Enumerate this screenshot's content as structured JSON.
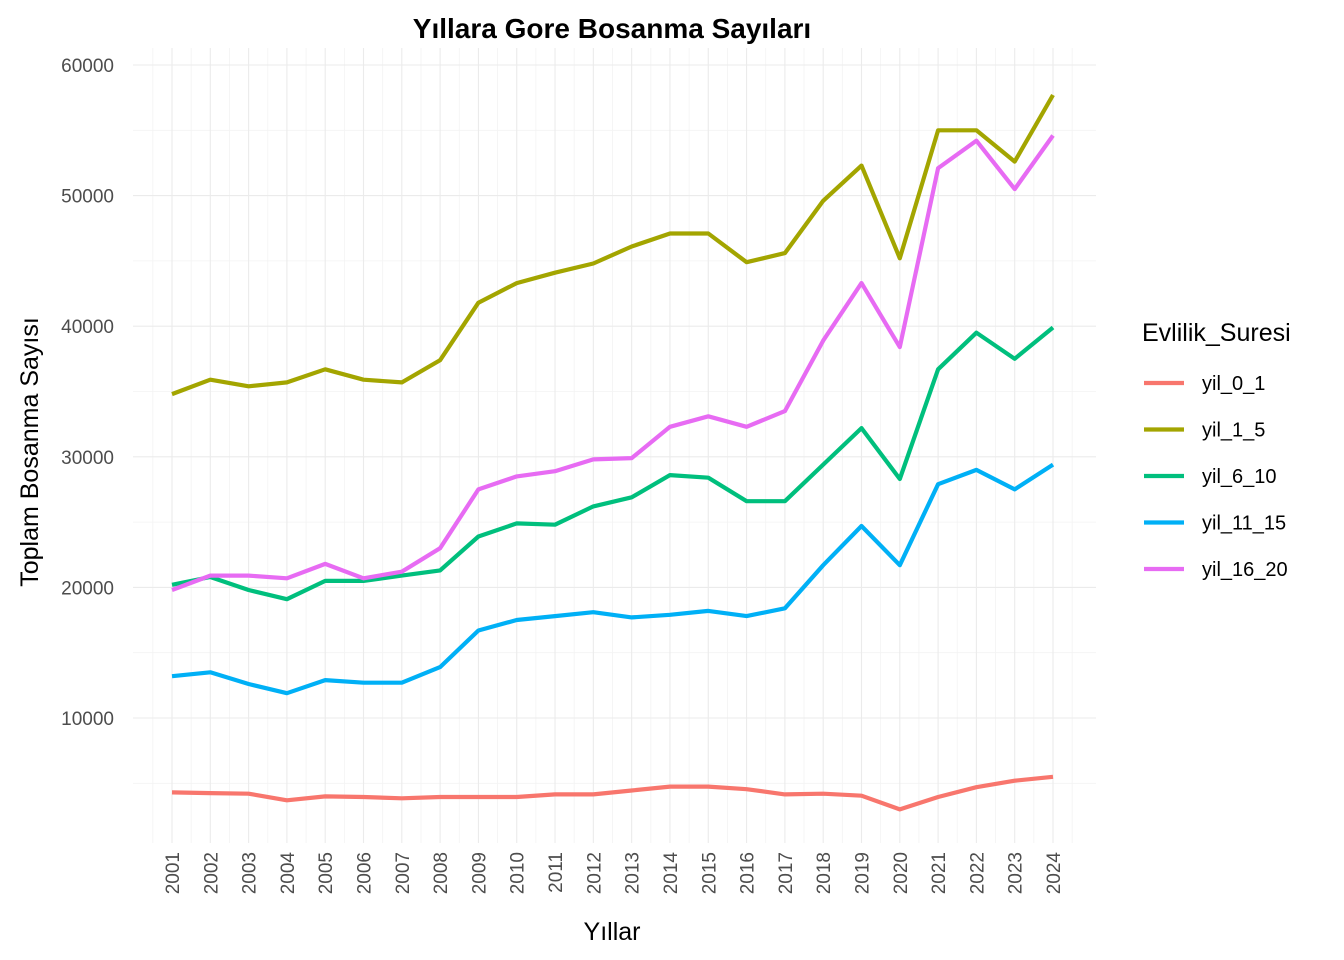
{
  "chart_data": {
    "type": "line",
    "title": "Yıllara Gore Bosanma Sayıları",
    "xlabel": "Yıllar",
    "ylabel": "Toplam Bosanma Sayısı",
    "legend_title": "Evlilik_Suresi",
    "legend_position": "right",
    "grid": true,
    "x": [
      2001,
      2002,
      2003,
      2004,
      2005,
      2006,
      2007,
      2008,
      2009,
      2010,
      2011,
      2012,
      2013,
      2014,
      2015,
      2016,
      2017,
      2018,
      2019,
      2020,
      2021,
      2022,
      2023,
      2024
    ],
    "xlim": [
      2000,
      2025
    ],
    "ylim": [
      3000,
      60000
    ],
    "yticks": [
      10000,
      20000,
      30000,
      40000,
      50000,
      60000
    ],
    "series": [
      {
        "name": "yil_0_1",
        "color": "#F8766D",
        "values": [
          4300,
          4250,
          4200,
          3700,
          4000,
          3950,
          3850,
          3950,
          3950,
          3950,
          4150,
          4150,
          4450,
          4750,
          4750,
          4550,
          4150,
          4200,
          4050,
          3000,
          3950,
          4700,
          5200,
          5500
        ]
      },
      {
        "name": "yil_1_5",
        "color": "#A3A500",
        "values": [
          34800,
          35900,
          35400,
          35700,
          36700,
          35900,
          35700,
          37400,
          41800,
          43300,
          44100,
          44800,
          46100,
          47100,
          47100,
          44900,
          45600,
          49600,
          52300,
          45200,
          55000,
          55000,
          52600,
          57700
        ]
      },
      {
        "name": "yil_6_10",
        "color": "#00BF7D",
        "values": [
          20200,
          20800,
          19800,
          19100,
          20500,
          20500,
          20900,
          21300,
          23900,
          24900,
          24800,
          26200,
          26900,
          28600,
          28400,
          26600,
          26600,
          29400,
          32200,
          28300,
          36700,
          39500,
          37500,
          39900
        ]
      },
      {
        "name": "yil_11_15",
        "color": "#00B0F6",
        "values": [
          13200,
          13500,
          12600,
          11900,
          12900,
          12700,
          12700,
          13900,
          16700,
          17500,
          17800,
          18100,
          17700,
          17900,
          18200,
          17800,
          18400,
          21700,
          24700,
          21700,
          27900,
          29000,
          27500,
          29400
        ]
      },
      {
        "name": "yil_16_20",
        "color": "#E76BF3",
        "values": [
          19800,
          20900,
          20900,
          20700,
          21800,
          20700,
          21200,
          23000,
          27500,
          28500,
          28900,
          29800,
          29900,
          32300,
          33100,
          32300,
          33500,
          38900,
          43300,
          38400,
          52100,
          54200,
          50500,
          54600
        ]
      }
    ]
  }
}
